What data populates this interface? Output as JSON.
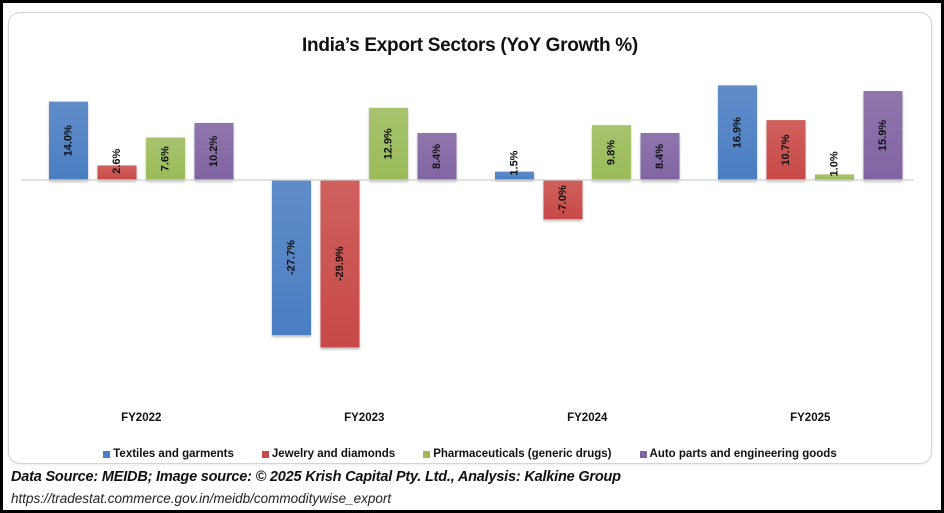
{
  "chart_data": {
    "type": "bar",
    "title": "India’s Export Sectors (YoY Growth %)",
    "xlabel": "",
    "ylabel": "",
    "categories": [
      "FY2022",
      "FY2023",
      "FY2024",
      "FY2025"
    ],
    "series": [
      {
        "name": "Textiles and garments",
        "color": "#4a7ec2",
        "values": [
          14.0,
          -27.7,
          1.5,
          16.9
        ],
        "labels": [
          "14.0%",
          "-27.7%",
          "1.5%",
          "16.9%"
        ]
      },
      {
        "name": "Jewelry and diamonds",
        "color": "#c84a47",
        "values": [
          2.6,
          -29.9,
          -7.0,
          10.7
        ],
        "labels": [
          "2.6%",
          "-29.9%",
          "-7.0%",
          "10.7%"
        ]
      },
      {
        "name": "Pharmaceuticals (generic drugs)",
        "color": "#9bbb59",
        "values": [
          7.6,
          12.9,
          9.8,
          1.0
        ],
        "labels": [
          "7.6%",
          "12.9%",
          "9.8%",
          "1.0%"
        ]
      },
      {
        "name": "Auto parts and engineering goods",
        "color": "#8064a2",
        "values": [
          10.2,
          8.4,
          8.4,
          15.9
        ],
        "labels": [
          "10.2%",
          "8.4%",
          "8.4%",
          "15.9%"
        ]
      }
    ],
    "ylim": [
      -35,
      20
    ],
    "grid": false,
    "axis_line": "zero",
    "legend_position": "bottom",
    "data_labels": "rotated-inside"
  },
  "footer": {
    "source": "Data Source: MEIDB; Image source: © 2025 Krish Capital Pty. Ltd., Analysis: Kalkine Group",
    "url": "https://tradestat.commerce.gov.in/meidb/commoditywise_export"
  }
}
